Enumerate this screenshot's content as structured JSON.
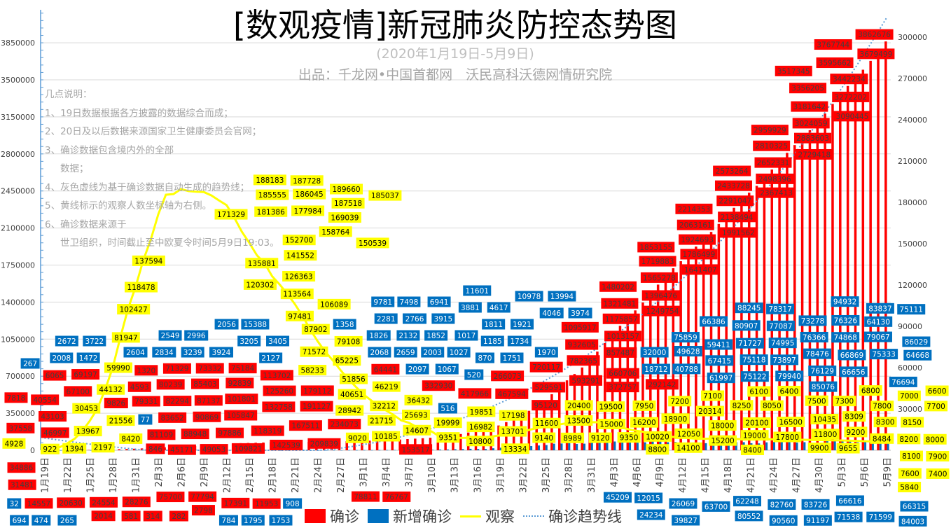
{
  "title": "[数观疫情]新冠肺炎防控态势图",
  "subtitle": "(2020年1月19日-5月9日)",
  "source": "出品：千龙网•中国首都网　沃民高科沃德网情研究院",
  "notes": [
    "几点说明：",
    "1、19日数据根据各方披露的数据综合而成；",
    "2、20日及以后数据来源国家卫生健康委员会官网；",
    "3、确诊数据包含境内外的全部",
    "数据；",
    "4、灰色虚线为基于确诊数据自动生成的趋势线；",
    "5、黄线标示的观察人数坐标轴为右侧。",
    "6、确诊数据来源于",
    "世卫组织，时间截止至中欧夏令时间5月9日19:03。"
  ],
  "colors": {
    "confirmed": "#FF0000",
    "new": "#0070C0",
    "observe": "#FFFF00",
    "trend": "#5B9BD5",
    "grid": "#D9D9D9"
  },
  "chart_data": {
    "type": "bar+line",
    "title": "[数观疫情]新冠肺炎防控态势图",
    "left_axis": {
      "min": 0,
      "max": 4200000,
      "ticks": [
        "0",
        "350000",
        "700000",
        "1050000",
        "1400000",
        "1750000",
        "2100000",
        "2450000",
        "2800000",
        "3150000",
        "3500000",
        "3850000"
      ]
    },
    "right_axis": {
      "min": 0,
      "max": 320000,
      "ticks": [
        "30000",
        "60000",
        "90000",
        "120000",
        "150000",
        "180000",
        "210000",
        "240000",
        "270000",
        "300000"
      ]
    },
    "x_tick_labels": [
      "1月19日",
      "1月22日",
      "1月25日",
      "1月28日",
      "1月31日",
      "2月3日",
      "2月6日",
      "2月9日",
      "2月12日",
      "2月15日",
      "2月18日",
      "2月21日",
      "2月24日",
      "2月27日",
      "3月1日",
      "3月4日",
      "3月7日",
      "3月10日",
      "3月13日",
      "3月16日",
      "3月19日",
      "3月22日",
      "3月25日",
      "3月28日",
      "3月31日",
      "4月3日",
      "4月6日",
      "4月9日",
      "4月12日",
      "4月15日",
      "4月18日",
      "4月21日",
      "4月24日",
      "4月27日",
      "4月30日",
      "5月3日",
      "5月6日",
      "5月9日"
    ],
    "legend": [
      "确诊",
      "新增确诊",
      "观察",
      "确诊趋势线"
    ],
    "legend_position": "bottom",
    "series": [
      {
        "name": "确诊",
        "type": "bar",
        "axis": "left",
        "values": [
          282,
          314,
          581,
          846,
          1320,
          2014,
          2798,
          4593,
          6065,
          7818,
          9826,
          11953,
          14557,
          17391,
          20630,
          24554,
          28276,
          31481,
          34886,
          37558,
          40554,
          43103,
          45171,
          46997,
          49053,
          64441,
          67100,
          69197,
          71329,
          73332,
          75184,
          75700,
          76767,
          77794,
          78811,
          79331,
          80239,
          81109,
          82294,
          83652,
          85403,
          87137,
          88948,
          90869,
          92839,
          95120,
          97886,
          101801,
          105847,
          109821,
          113702,
          118319,
          125260,
          132758,
          142539,
          153517,
          167511,
          179112,
          191127,
          209839,
          234073,
          266073,
          292142,
          332930,
          372757,
          417966,
          467594,
          529591,
          593291,
          660706,
          720117,
          782365,
          857487,
          932605,
          1013157,
          1095917,
          1175857,
          1249754,
          1321481,
          1396476,
          1480202,
          1565278,
          1641407,
          1719883,
          1786499,
          1853155,
          1924693,
          1991562,
          2063161,
          2138494,
          2214353,
          2291047,
          2367413,
          2433728,
          2498396,
          2573264,
          2652331,
          2729418,
          2810325,
          2883603,
          2959929,
          3024059,
          3090445,
          3181642,
          3272202,
          3356205,
          3442234,
          3517345,
          3595662,
          3679499,
          3767744,
          3862676
        ]
      },
      {
        "name": "新增确诊",
        "type": "bar",
        "axis": "left",
        "values": [
          77,
          32,
          267,
          265,
          474,
          694,
          784,
          1795,
          1472,
          1753,
          2008,
          2127,
          2604,
          2834,
          3239,
          3924,
          3722,
          3205,
          3405,
          2672,
          2996,
          2549,
          2068,
          1826,
          2056,
          15388,
          2659,
          2097,
          2132,
          2003,
          1852,
          516,
          1067,
          1027,
          1017,
          520,
          908,
          870,
          1185,
          1358,
          1751,
          1734,
          1811,
          1921,
          1970,
          2281,
          2766,
          3915,
          4046,
          3974,
          3881,
          4617,
          6941,
          7498,
          9781,
          10978,
          13994,
          11601,
          12015,
          18712,
          24234,
          32000,
          26069,
          40788,
          39827,
          45209,
          49628,
          61997,
          63700,
          67415,
          59411,
          62248,
          75122,
          75118,
          80552,
          82760,
          79940,
          73897,
          71727,
          74995,
          83726,
          85076,
          76129,
          78476,
          66616,
          66656,
          71538,
          66869,
          71599,
          75333,
          75859,
          76694,
          76366,
          66315,
          64668,
          74868,
          79067,
          77087,
          80907,
          73278,
          76326,
          64130,
          66386,
          91197,
          90560,
          84003,
          86029,
          75111,
          78317,
          83837,
          88245,
          94932
        ]
      },
      {
        "name": "观察",
        "type": "line",
        "axis": "right",
        "values": [
          922,
          1394,
          2197,
          4928,
          8420,
          13967,
          21556,
          30453,
          44132,
          59990,
          81947,
          102427,
          118478,
          137594,
          152700,
          171329,
          185555,
          186045,
          189660,
          188183,
          187728,
          187518,
          185037,
          181386,
          177984,
          169039,
          158764,
          150539,
          141552,
          135881,
          126363,
          120302,
          113564,
          106089,
          97481,
          87902,
          79108,
          71572,
          65225,
          58233,
          51856,
          46219,
          40651,
          36432,
          32212,
          28942,
          25693,
          21715,
          19999,
          16982,
          14607,
          13701,
          10185,
          9351,
          9140,
          8989,
          9020,
          9120,
          9350,
          10020,
          10800,
          11600,
          12050,
          13500,
          15000,
          16200,
          17198,
          18000,
          18900,
          19851,
          19500,
          20100,
          20314,
          20400,
          19000,
          17800,
          16500,
          15200,
          14100,
          13334,
          11800,
          10435,
          9900,
          9655,
          9200,
          8800,
          8309,
          8400,
          8484,
          8300,
          8250,
          8200,
          8150,
          8100,
          8050,
          8000,
          7950,
          7900,
          7800,
          7700,
          7600,
          7500,
          7400,
          7300,
          7200,
          7100,
          7000,
          6800,
          6600,
          6400,
          6100,
          5840
        ]
      },
      {
        "name": "确诊趋势线",
        "type": "trendline",
        "axis": "left"
      }
    ]
  }
}
